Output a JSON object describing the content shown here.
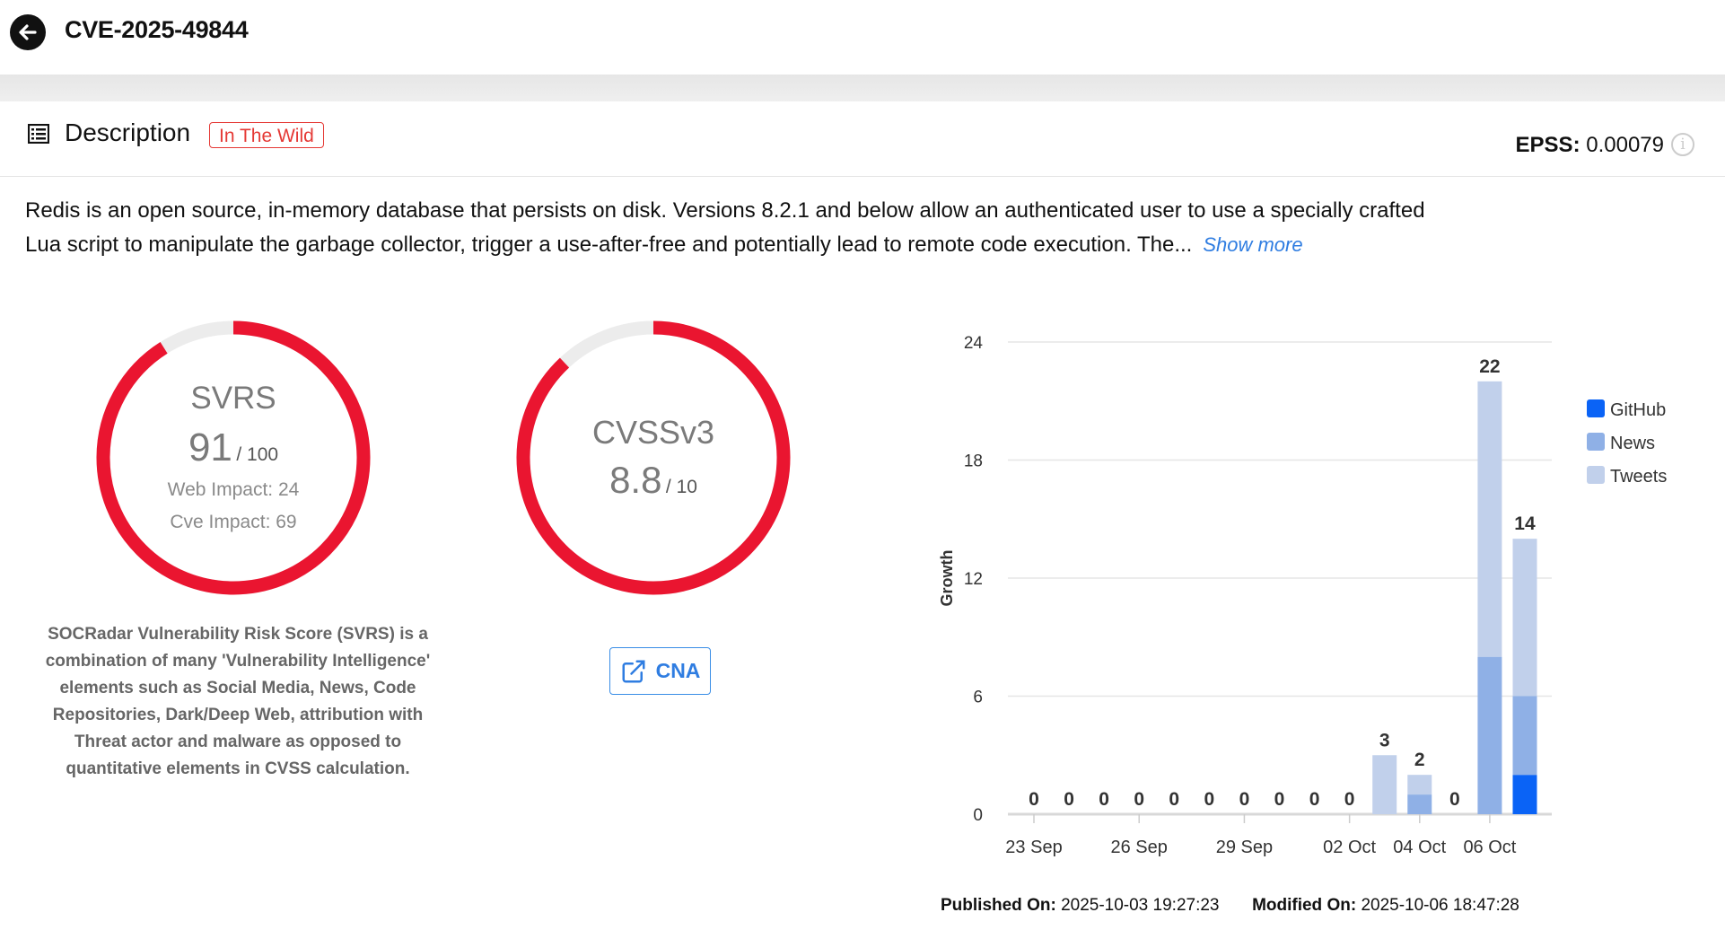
{
  "header": {
    "title": "CVE-2025-49844",
    "back_icon": "arrow-left-circle-icon"
  },
  "description": {
    "heading": "Description",
    "badge": "In The Wild",
    "epss_label": "EPSS:",
    "epss_value": "0.00079",
    "text": "Redis is an open source, in-memory database that persists on disk. Versions 8.2.1 and below allow an authenticated user to use a specially crafted Lua script to manipulate the garbage collector, trigger a use-after-free and potentially lead to remote code execution. The...",
    "show_more": "Show more"
  },
  "svrs": {
    "label": "SVRS",
    "score": "91",
    "max": "/ 100",
    "score_fraction": 0.91,
    "web_impact": "Web Impact: 24",
    "cve_impact": "Cve Impact: 69",
    "explanation": "SOCRadar Vulnerability Risk Score (SVRS) is a combination of many 'Vulnerability Intelligence' elements such as Social Media, News, Code Repositories, Dark/Deep Web, attribution with Threat actor and malware as opposed to quantitative elements in CVSS calculation."
  },
  "cvss": {
    "label": "CVSSv3",
    "score": "8.8",
    "max": "/ 10",
    "score_fraction": 0.88,
    "cna_button": "CNA"
  },
  "colors": {
    "gauge": "#ea1530",
    "track": "#ececec",
    "github": "#0a63f6",
    "news": "#8fb0e6",
    "tweets": "#c1d0eb",
    "accent": "#2f7de1"
  },
  "chart_data": {
    "type": "bar",
    "stacked": true,
    "ylabel": "Growth",
    "ylim": [
      0,
      24
    ],
    "yticks": [
      0,
      6,
      12,
      18,
      24
    ],
    "grid": true,
    "legend": "right",
    "categories": [
      "23 Sep",
      "",
      "",
      "26 Sep",
      "",
      "",
      "29 Sep",
      "",
      "",
      "02 Oct",
      "",
      "04 Oct",
      "",
      "06 Oct",
      ""
    ],
    "series": [
      {
        "name": "GitHub",
        "values": [
          0,
          0,
          0,
          0,
          0,
          0,
          0,
          0,
          0,
          0,
          0,
          0,
          0,
          0,
          2
        ]
      },
      {
        "name": "News",
        "values": [
          0,
          0,
          0,
          0,
          0,
          0,
          0,
          0,
          0,
          0,
          0,
          1,
          0,
          8,
          4
        ]
      },
      {
        "name": "Tweets",
        "values": [
          0,
          0,
          0,
          0,
          0,
          0,
          0,
          0,
          0,
          0,
          3,
          1,
          0,
          14,
          8
        ]
      }
    ],
    "totals": [
      "0",
      "0",
      "0",
      "0",
      "0",
      "0",
      "0",
      "0",
      "0",
      "0",
      "3",
      "2",
      "0",
      "22",
      "14"
    ]
  },
  "footer": {
    "published_label": "Published On:",
    "published": "2025-10-03 19:27:23",
    "modified_label": "Modified On:",
    "modified": "2025-10-06 18:47:28"
  }
}
